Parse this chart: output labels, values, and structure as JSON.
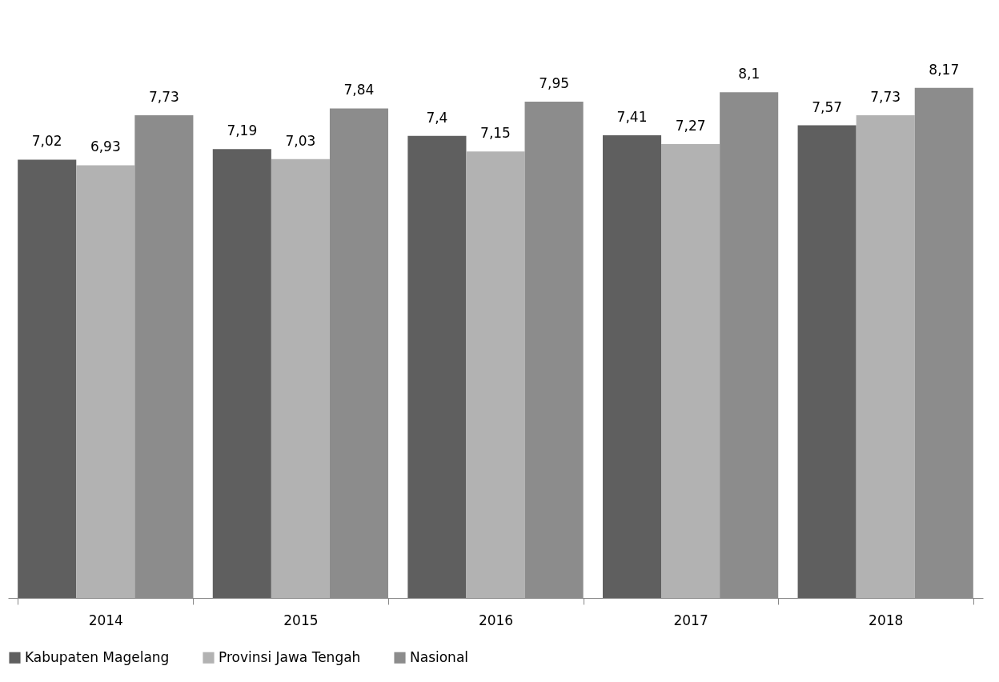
{
  "chart_data": {
    "type": "bar",
    "categories": [
      "2014",
      "2015",
      "2016",
      "2017",
      "2018"
    ],
    "series": [
      {
        "name": "Kabupaten Magelang",
        "color": "#5f5f5f",
        "values": [
          7.02,
          7.19,
          7.4,
          7.41,
          7.57
        ],
        "value_labels": [
          "7,02",
          "7,19",
          "7,4",
          "7,41",
          "7,57"
        ]
      },
      {
        "name": "Provinsi Jawa Tengah",
        "color": "#b2b2b2",
        "values": [
          6.93,
          7.03,
          7.15,
          7.27,
          7.73
        ],
        "value_labels": [
          "6,93",
          "7,03",
          "7,15",
          "7,27",
          "7,73"
        ]
      },
      {
        "name": "Nasional",
        "color": "#8c8c8c",
        "values": [
          7.73,
          7.84,
          7.95,
          8.1,
          8.17
        ],
        "value_labels": [
          "7,73",
          "7,84",
          "7,95",
          "8,1",
          "8,17"
        ]
      }
    ],
    "tick_labels": "x",
    "legend": "bottom",
    "grid": false
  }
}
